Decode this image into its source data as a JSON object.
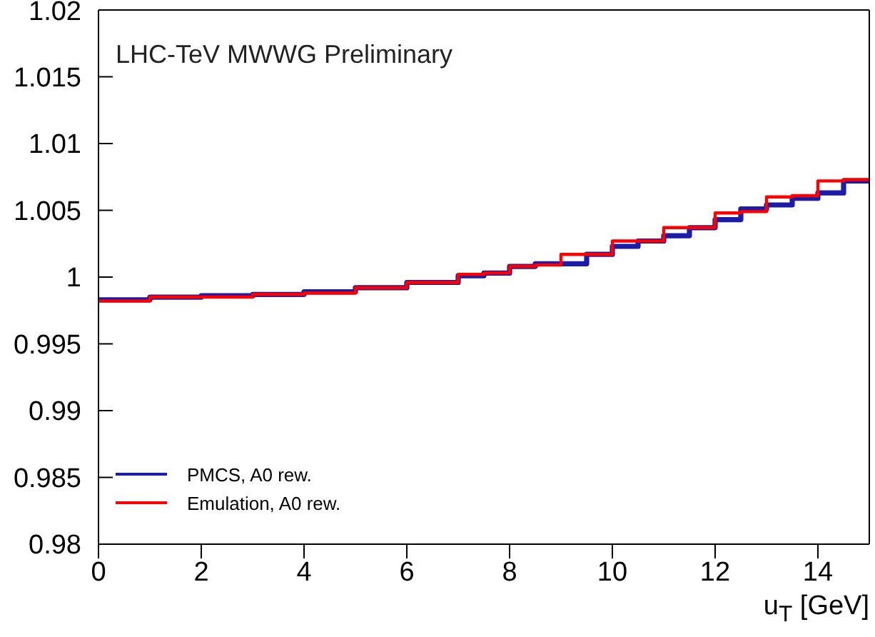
{
  "chart_data": {
    "type": "step",
    "annotations": [
      "LHC-TeV MWWG Preliminary"
    ],
    "xlabel": "u$_{T}$ [GeV]",
    "xlim": [
      0,
      15
    ],
    "xticks": [
      0,
      2,
      4,
      6,
      8,
      10,
      12,
      14
    ],
    "ylim": [
      0.98,
      1.02
    ],
    "yticks": [
      0.98,
      0.985,
      0.99,
      0.995,
      1,
      1.005,
      1.01,
      1.015,
      1.02
    ],
    "x": [
      0,
      1,
      2,
      3,
      4,
      5,
      6,
      7,
      7.5,
      8,
      8.5,
      9,
      9.5,
      10,
      10.5,
      11,
      11.5,
      12,
      12.5,
      13,
      13.5,
      14,
      14.5,
      15
    ],
    "series": [
      {
        "name": "PMCS, A0 rew.",
        "color": "#1c1ca8",
        "values": [
          0.9983,
          0.9985,
          0.9986,
          0.9987,
          0.9989,
          0.9992,
          0.9996,
          1.0001,
          1.0003,
          1.0008,
          1.001,
          1.001,
          1.0017,
          1.0023,
          1.0027,
          1.0031,
          1.0037,
          1.0043,
          1.0051,
          1.0054,
          1.0059,
          1.0063,
          1.0072,
          1.0072
        ]
      },
      {
        "name": "Emulation, A0 rew.",
        "color": "#ff0000",
        "values": [
          0.9982,
          0.9985,
          0.9985,
          0.9987,
          0.9988,
          0.9992,
          0.9996,
          1.0002,
          1.0003,
          1.0008,
          1.0009,
          1.0017,
          1.0017,
          1.0027,
          1.0027,
          1.0037,
          1.0037,
          1.0048,
          1.0049,
          1.006,
          1.0061,
          1.0072,
          1.0073,
          1.0073
        ]
      }
    ],
    "legend": "bottom left",
    "grid": false
  }
}
